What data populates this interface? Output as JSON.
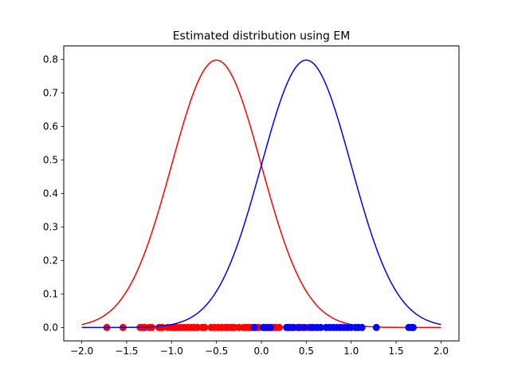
{
  "chart_data": {
    "type": "line",
    "title": "Estimated distribution using EM",
    "xlabel": "",
    "ylabel": "",
    "xlim": [
      -2.2,
      2.2
    ],
    "ylim": [
      -0.04,
      0.84
    ],
    "xticks": [
      -2.0,
      -1.5,
      -1.0,
      -0.5,
      0.0,
      0.5,
      1.0,
      1.5,
      2.0
    ],
    "xtick_labels": [
      "−2.0",
      "−1.5",
      "−1.0",
      "−0.5",
      "0.0",
      "0.5",
      "1.0",
      "1.5",
      "2.0"
    ],
    "yticks": [
      0.0,
      0.1,
      0.2,
      0.3,
      0.4,
      0.5,
      0.6,
      0.7,
      0.8
    ],
    "ytick_labels": [
      "0.0",
      "0.1",
      "0.2",
      "0.3",
      "0.4",
      "0.5",
      "0.6",
      "0.7",
      "0.8"
    ],
    "grid": false,
    "series": [
      {
        "color": "#ff0000",
        "curve": {
          "kind": "gaussian",
          "mean": -0.5,
          "std": 0.5,
          "x_range": [
            -2.0,
            2.0
          ]
        },
        "points_y": 0.0,
        "points_x": [
          -1.72,
          -1.54,
          -1.35,
          -1.32,
          -1.3,
          -1.25,
          -1.22,
          -1.14,
          -1.12,
          -1.1,
          -1.04,
          -1.0,
          -0.97,
          -0.94,
          -0.9,
          -0.86,
          -0.82,
          -0.78,
          -0.75,
          -0.71,
          -0.66,
          -0.63,
          -0.56,
          -0.52,
          -0.48,
          -0.44,
          -0.4,
          -0.37,
          -0.33,
          -0.3,
          -0.25,
          -0.2,
          -0.17,
          -0.14,
          -0.11,
          -0.06,
          -0.03,
          0.04,
          0.07,
          0.1,
          0.13,
          0.16,
          0.2,
          0.3,
          0.35,
          0.4,
          0.45,
          0.52
        ]
      },
      {
        "color": "#0000ff",
        "curve": {
          "kind": "gaussian",
          "mean": 0.5,
          "std": 0.5,
          "x_range": [
            -2.0,
            2.0
          ]
        },
        "points_y": 0.0,
        "points_x": [
          -0.08,
          0.02,
          0.06,
          0.1,
          0.28,
          0.32,
          0.36,
          0.42,
          0.48,
          0.55,
          0.58,
          0.62,
          0.66,
          0.72,
          0.76,
          0.8,
          0.84,
          0.88,
          0.92,
          0.96,
          1.0,
          1.05,
          1.08,
          1.12,
          1.28,
          1.64,
          1.67,
          1.69
        ]
      }
    ]
  }
}
